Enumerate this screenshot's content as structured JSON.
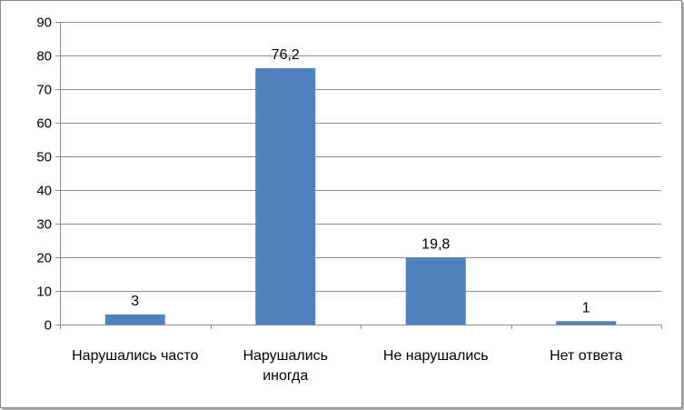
{
  "chart_data": {
    "type": "bar",
    "categories": [
      [
        "Нарушались часто"
      ],
      [
        "Нарушались",
        "иногда"
      ],
      [
        "Не нарушались"
      ],
      [
        "Нет ответа"
      ]
    ],
    "values": [
      3,
      76.2,
      19.8,
      1
    ],
    "data_labels": [
      "3",
      "76,2",
      "19,8",
      "1"
    ],
    "ylim": [
      0,
      90
    ],
    "yticks": [
      0,
      10,
      20,
      30,
      40,
      50,
      60,
      70,
      80,
      90
    ],
    "grid": true,
    "legend": "none",
    "bar_color": "#4f81bd"
  }
}
